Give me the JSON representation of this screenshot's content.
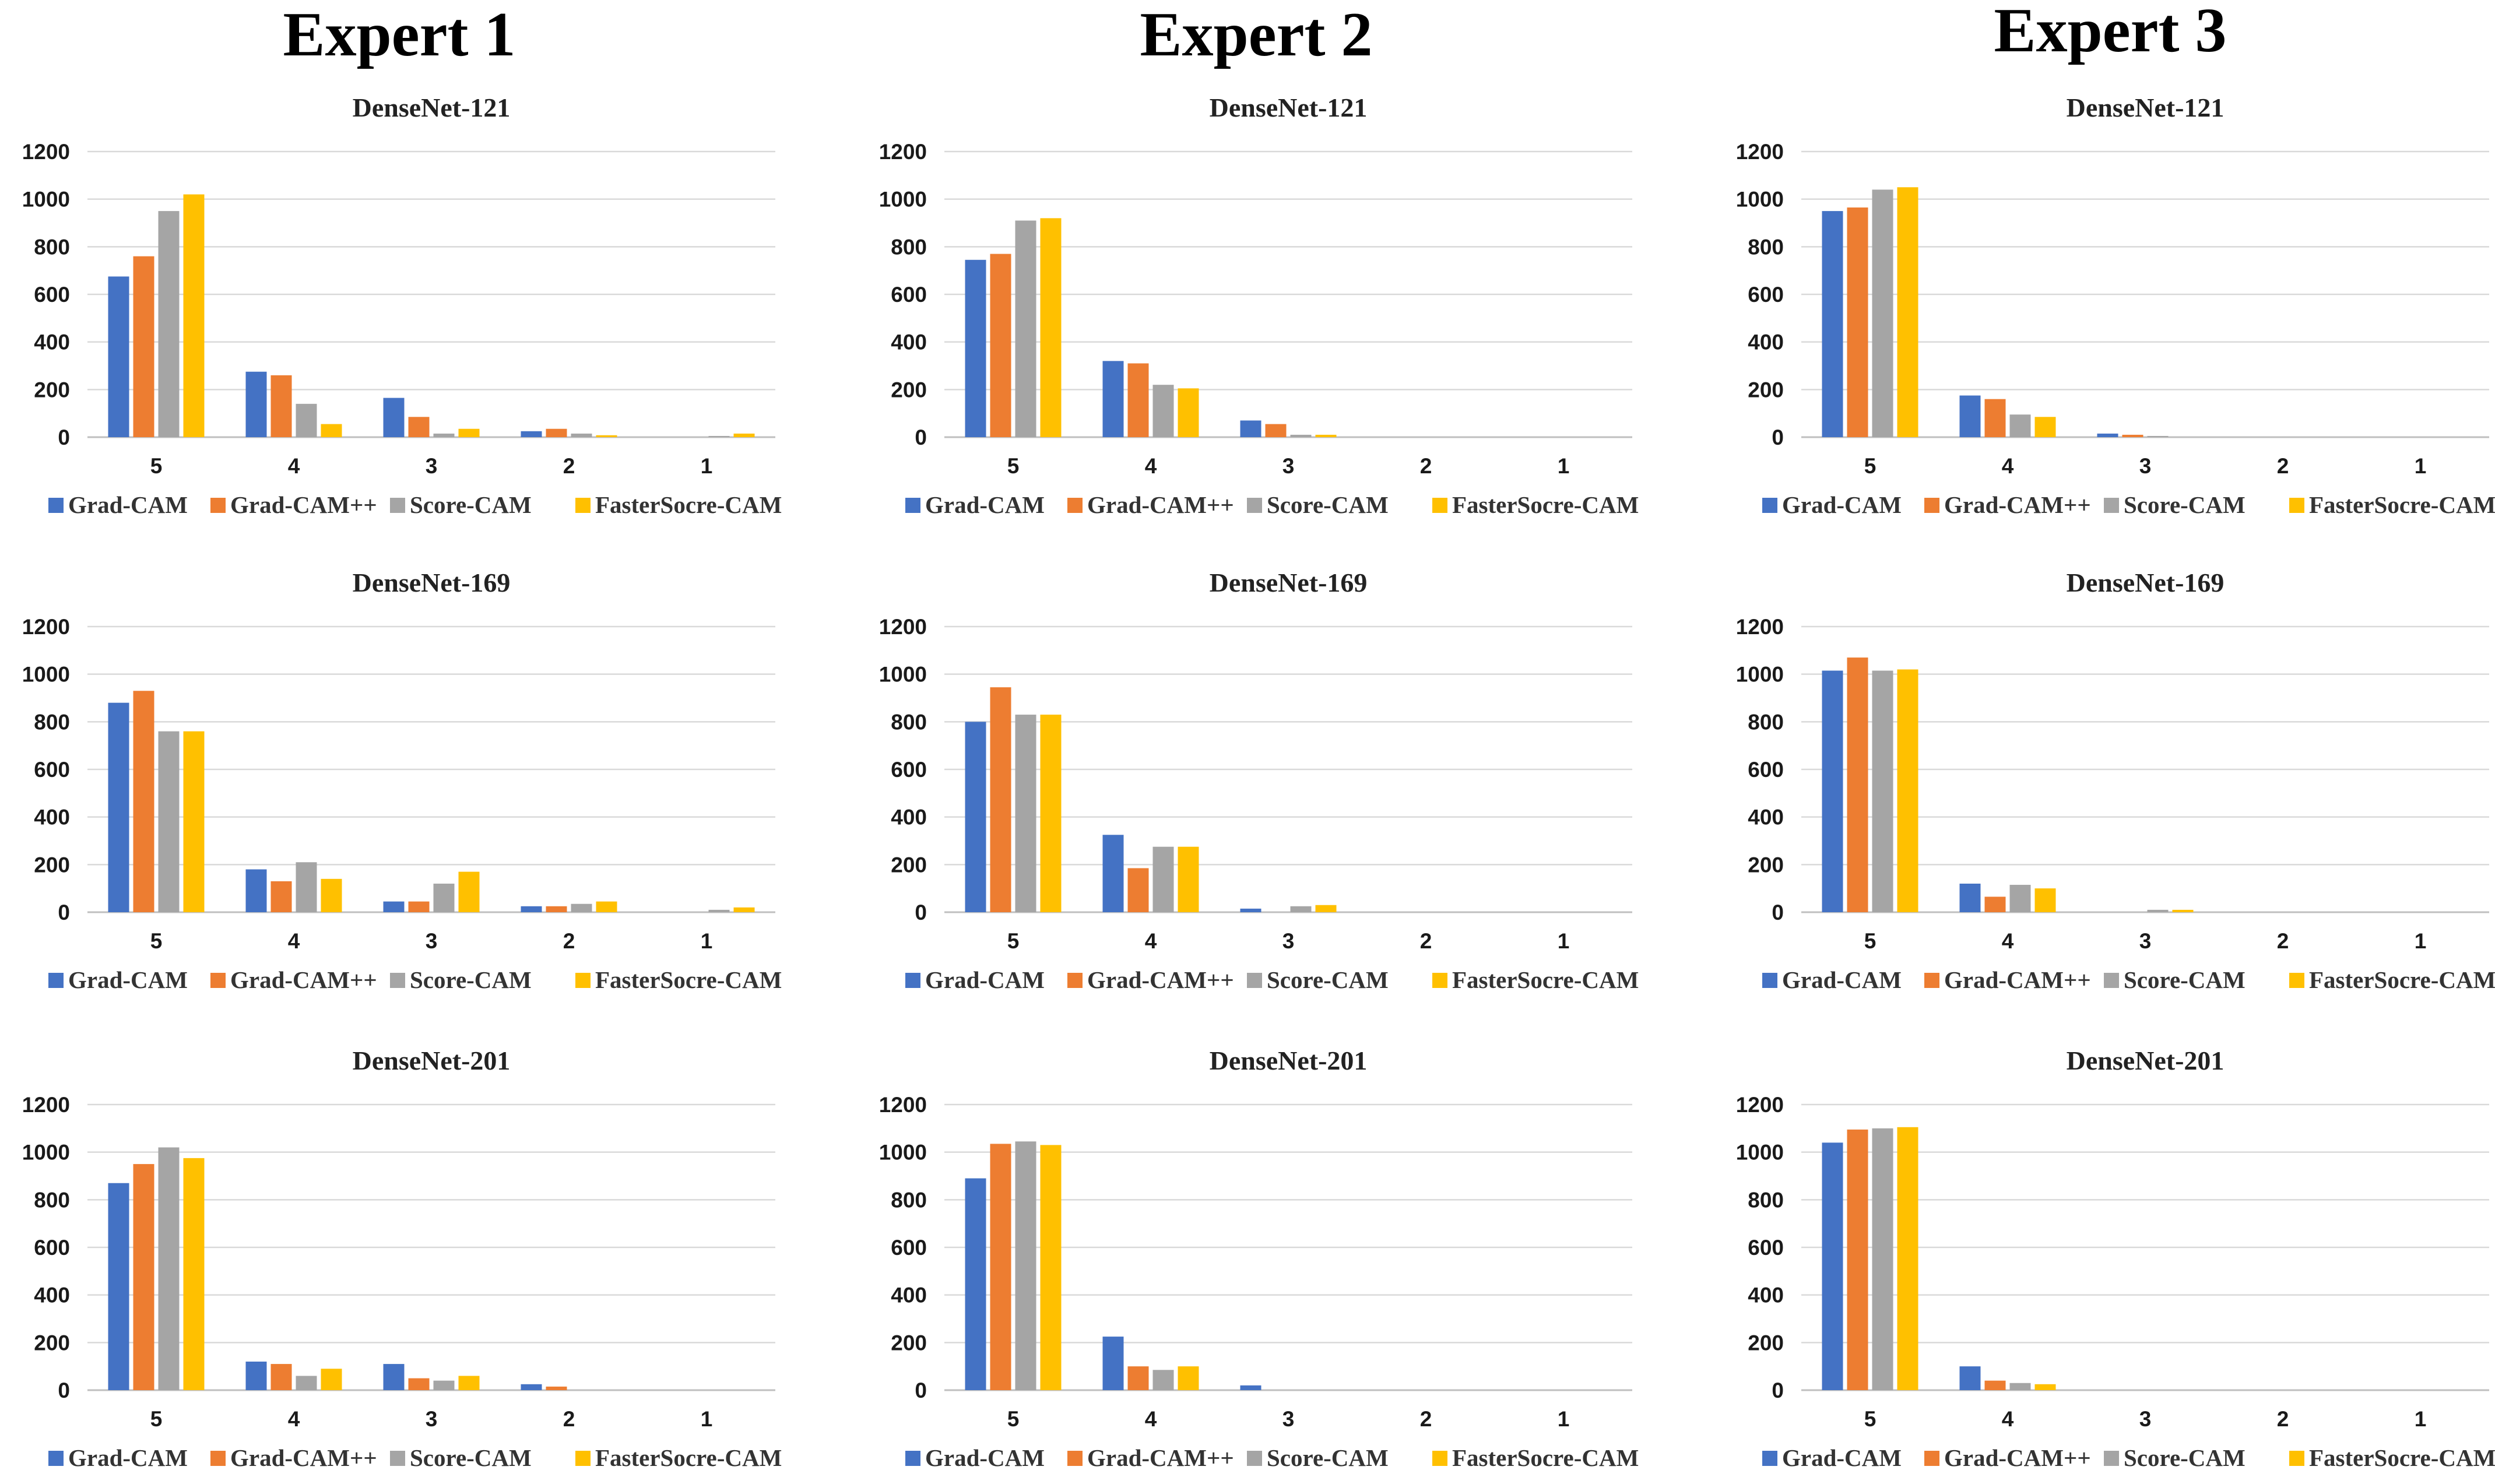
{
  "experts": [
    "Expert 1",
    "Expert 2",
    "Expert 3"
  ],
  "colors": {
    "Grad-CAM": "#4472C4",
    "Grad-CAM++": "#ED7D31",
    "Score-CAM": "#A5A5A5",
    "FasterSocre-CAM": "#FFC000"
  },
  "chart_data": [
    {
      "type": "bar",
      "expert": "Expert 1",
      "title": "DenseNet-121",
      "categories": [
        "5",
        "4",
        "3",
        "2",
        "1"
      ],
      "ylim": [
        0,
        1200
      ],
      "yticks": [
        0,
        200,
        400,
        600,
        800,
        1000,
        1200
      ],
      "legend": "bottom",
      "series": [
        {
          "name": "Grad-CAM",
          "values": [
            675,
            275,
            165,
            25,
            0
          ]
        },
        {
          "name": "Grad-CAM++",
          "values": [
            760,
            260,
            85,
            35,
            0
          ]
        },
        {
          "name": "Score-CAM",
          "values": [
            950,
            140,
            15,
            15,
            5
          ]
        },
        {
          "name": "FasterSocre-CAM",
          "values": [
            1020,
            55,
            35,
            8,
            15
          ]
        }
      ]
    },
    {
      "type": "bar",
      "expert": "Expert 2",
      "title": "DenseNet-121",
      "categories": [
        "5",
        "4",
        "3",
        "2",
        "1"
      ],
      "ylim": [
        0,
        1200
      ],
      "yticks": [
        0,
        200,
        400,
        600,
        800,
        1000,
        1200
      ],
      "legend": "bottom",
      "series": [
        {
          "name": "Grad-CAM",
          "values": [
            745,
            320,
            70,
            0,
            0
          ]
        },
        {
          "name": "Grad-CAM++",
          "values": [
            770,
            310,
            55,
            0,
            0
          ]
        },
        {
          "name": "Score-CAM",
          "values": [
            910,
            220,
            10,
            0,
            0
          ]
        },
        {
          "name": "FasterSocre-CAM",
          "values": [
            920,
            205,
            10,
            0,
            0
          ]
        }
      ]
    },
    {
      "type": "bar",
      "expert": "Expert 3",
      "title": "DenseNet-121",
      "categories": [
        "5",
        "4",
        "3",
        "2",
        "1"
      ],
      "ylim": [
        0,
        1200
      ],
      "yticks": [
        0,
        200,
        400,
        600,
        800,
        1000,
        1200
      ],
      "legend": "bottom",
      "series": [
        {
          "name": "Grad-CAM",
          "values": [
            950,
            175,
            15,
            0,
            0
          ]
        },
        {
          "name": "Grad-CAM++",
          "values": [
            965,
            160,
            10,
            0,
            0
          ]
        },
        {
          "name": "Score-CAM",
          "values": [
            1040,
            95,
            5,
            0,
            0
          ]
        },
        {
          "name": "FasterSocre-CAM",
          "values": [
            1050,
            85,
            0,
            0,
            0
          ]
        }
      ]
    },
    {
      "type": "bar",
      "expert": "Expert 1",
      "title": "DenseNet-169",
      "categories": [
        "5",
        "4",
        "3",
        "2",
        "1"
      ],
      "ylim": [
        0,
        1200
      ],
      "yticks": [
        0,
        200,
        400,
        600,
        800,
        1000,
        1200
      ],
      "legend": "bottom",
      "series": [
        {
          "name": "Grad-CAM",
          "values": [
            880,
            180,
            45,
            25,
            0
          ]
        },
        {
          "name": "Grad-CAM++",
          "values": [
            930,
            130,
            45,
            25,
            0
          ]
        },
        {
          "name": "Score-CAM",
          "values": [
            760,
            210,
            120,
            35,
            10
          ]
        },
        {
          "name": "FasterSocre-CAM",
          "values": [
            760,
            140,
            170,
            45,
            20
          ]
        }
      ]
    },
    {
      "type": "bar",
      "expert": "Expert 2",
      "title": "DenseNet-169",
      "categories": [
        "5",
        "4",
        "3",
        "2",
        "1"
      ],
      "ylim": [
        0,
        1200
      ],
      "yticks": [
        0,
        200,
        400,
        600,
        800,
        1000,
        1200
      ],
      "legend": "bottom",
      "series": [
        {
          "name": "Grad-CAM",
          "values": [
            800,
            325,
            15,
            0,
            0
          ]
        },
        {
          "name": "Grad-CAM++",
          "values": [
            945,
            185,
            0,
            0,
            0
          ]
        },
        {
          "name": "Score-CAM",
          "values": [
            830,
            275,
            25,
            0,
            0
          ]
        },
        {
          "name": "FasterSocre-CAM",
          "values": [
            830,
            275,
            30,
            0,
            0
          ]
        }
      ]
    },
    {
      "type": "bar",
      "expert": "Expert 3",
      "title": "DenseNet-169",
      "categories": [
        "5",
        "4",
        "3",
        "2",
        "1"
      ],
      "ylim": [
        0,
        1200
      ],
      "yticks": [
        0,
        200,
        400,
        600,
        800,
        1000,
        1200
      ],
      "legend": "bottom",
      "series": [
        {
          "name": "Grad-CAM",
          "values": [
            1015,
            120,
            0,
            0,
            0
          ]
        },
        {
          "name": "Grad-CAM++",
          "values": [
            1070,
            65,
            0,
            0,
            0
          ]
        },
        {
          "name": "Score-CAM",
          "values": [
            1015,
            115,
            10,
            0,
            0
          ]
        },
        {
          "name": "FasterSocre-CAM",
          "values": [
            1020,
            100,
            10,
            0,
            0
          ]
        }
      ]
    },
    {
      "type": "bar",
      "expert": "Expert 1",
      "title": "DenseNet-201",
      "categories": [
        "5",
        "4",
        "3",
        "2",
        "1"
      ],
      "ylim": [
        0,
        1200
      ],
      "yticks": [
        0,
        200,
        400,
        600,
        800,
        1000,
        1200
      ],
      "legend": "bottom",
      "series": [
        {
          "name": "Grad-CAM",
          "values": [
            870,
            120,
            110,
            25,
            0
          ]
        },
        {
          "name": "Grad-CAM++",
          "values": [
            950,
            110,
            50,
            15,
            0
          ]
        },
        {
          "name": "Score-CAM",
          "values": [
            1020,
            60,
            40,
            0,
            0
          ]
        },
        {
          "name": "FasterSocre-CAM",
          "values": [
            975,
            90,
            60,
            0,
            0
          ]
        }
      ]
    },
    {
      "type": "bar",
      "expert": "Expert 2",
      "title": "DenseNet-201",
      "categories": [
        "5",
        "4",
        "3",
        "2",
        "1"
      ],
      "ylim": [
        0,
        1200
      ],
      "yticks": [
        0,
        200,
        400,
        600,
        800,
        1000,
        1200
      ],
      "legend": "bottom",
      "series": [
        {
          "name": "Grad-CAM",
          "values": [
            890,
            225,
            20,
            0,
            0
          ]
        },
        {
          "name": "Grad-CAM++",
          "values": [
            1035,
            100,
            0,
            0,
            0
          ]
        },
        {
          "name": "Score-CAM",
          "values": [
            1045,
            85,
            0,
            0,
            0
          ]
        },
        {
          "name": "FasterSocre-CAM",
          "values": [
            1030,
            100,
            0,
            0,
            0
          ]
        }
      ]
    },
    {
      "type": "bar",
      "expert": "Expert 3",
      "title": "DenseNet-201",
      "categories": [
        "5",
        "4",
        "3",
        "2",
        "1"
      ],
      "ylim": [
        0,
        1200
      ],
      "yticks": [
        0,
        200,
        400,
        600,
        800,
        1000,
        1200
      ],
      "legend": "bottom",
      "series": [
        {
          "name": "Grad-CAM",
          "values": [
            1040,
            100,
            0,
            0,
            0
          ]
        },
        {
          "name": "Grad-CAM++",
          "values": [
            1095,
            40,
            0,
            0,
            0
          ]
        },
        {
          "name": "Score-CAM",
          "values": [
            1100,
            30,
            0,
            0,
            0
          ]
        },
        {
          "name": "FasterSocre-CAM",
          "values": [
            1105,
            25,
            0,
            0,
            0
          ]
        }
      ]
    }
  ]
}
